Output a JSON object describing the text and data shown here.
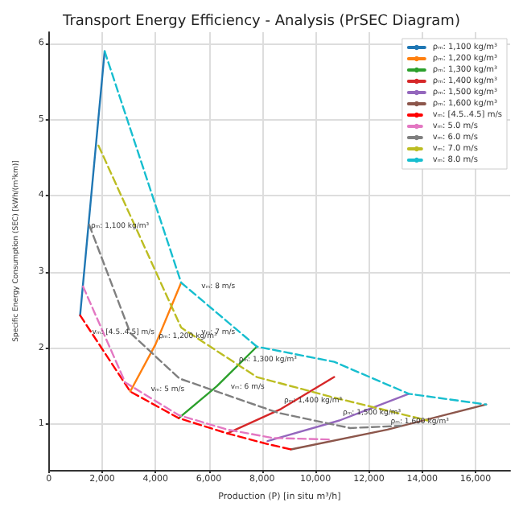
{
  "chart_data": {
    "type": "line",
    "title": "Transport Energy Efficiency - Analysis (PrSEC Diagram)",
    "xlabel": "Production (P) [in situ m³/h]",
    "ylabel": "Specific Energy Consumption (SEC) [kWh/(m³km)]",
    "xlim": [
      0,
      17300
    ],
    "ylim": [
      0.4,
      6.15
    ],
    "xticks": [
      0,
      {
        "value": 2000,
        "label": "2,000"
      },
      {
        "value": 4000,
        "label": "4,000"
      },
      {
        "value": 6000,
        "label": "6,000"
      },
      {
        "value": 8000,
        "label": "8,000"
      },
      {
        "value": 10000,
        "label": "10,000"
      },
      {
        "value": 12000,
        "label": "12,000"
      },
      {
        "value": 14000,
        "label": "14,000"
      },
      {
        "value": 16000,
        "label": "16,000"
      }
    ],
    "yticks": [
      1,
      2,
      3,
      4,
      5,
      6
    ],
    "grid": true,
    "legend": "top right",
    "marker": "none",
    "series": [
      {
        "name": "ρₘ: 1,100 kg/m³",
        "color": "#1f77b4",
        "line_style": "solid",
        "x": [
          1170,
          2090
        ],
        "values": [
          2.43,
          5.9
        ]
      },
      {
        "name": "ρₘ: 1,200 kg/m³",
        "color": "#ff7f0e",
        "line_style": "solid",
        "x": [
          3050,
          4000,
          4960
        ],
        "values": [
          1.43,
          2.05,
          2.86
        ]
      },
      {
        "name": "ρₘ: 1,300 kg/m³",
        "color": "#2ca02c",
        "line_style": "solid",
        "x": [
          4870,
          6300,
          7800
        ],
        "values": [
          1.08,
          1.5,
          2.02
        ]
      },
      {
        "name": "ρₘ: 1,400 kg/m³",
        "color": "#d62728",
        "line_style": "solid",
        "x": [
          6690,
          8700,
          10700
        ],
        "values": [
          0.88,
          1.2,
          1.62
        ]
      },
      {
        "name": "ρₘ: 1,500 kg/m³",
        "color": "#9467bd",
        "line_style": "solid",
        "x": [
          8200,
          10900,
          13500
        ],
        "values": [
          0.78,
          1.05,
          1.4
        ]
      },
      {
        "name": "ρₘ: 1,600 kg/m³",
        "color": "#8c564b",
        "line_style": "solid",
        "x": [
          9080,
          12700,
          16400
        ],
        "values": [
          0.67,
          0.93,
          1.26
        ]
      },
      {
        "name": "vₘ: [4.5..4.5] m/s",
        "color": "#ff0000",
        "line_style": "dashed",
        "x": [
          1170,
          3050,
          4870,
          6690,
          8200,
          9080
        ],
        "values": [
          2.43,
          1.43,
          1.08,
          0.88,
          0.74,
          0.67
        ]
      },
      {
        "name": "vₘ: 5.0 m/s",
        "color": "#e377c2",
        "line_style": "dashed",
        "x": [
          1280,
          2860,
          4870,
          6690,
          8400,
          10500
        ],
        "values": [
          2.81,
          1.55,
          1.12,
          0.93,
          0.82,
          0.8
        ]
      },
      {
        "name": "vₘ: 6.0 m/s",
        "color": "#7f7f7f",
        "line_style": "dashed",
        "x": [
          1510,
          3050,
          4900,
          8600,
          11300,
          13200
        ],
        "values": [
          3.62,
          2.2,
          1.6,
          1.15,
          0.95,
          0.98
        ]
      },
      {
        "name": "vₘ: 7.0 m/s",
        "color": "#bcbd22",
        "line_style": "dashed",
        "x": [
          1860,
          4960,
          7800,
          10700,
          14200
        ],
        "values": [
          4.66,
          2.27,
          1.62,
          1.35,
          1.05
        ]
      },
      {
        "name": "vₘ: 8.0 m/s",
        "color": "#17becf",
        "line_style": "dashed",
        "x": [
          2090,
          4960,
          7800,
          10700,
          13500,
          16400
        ],
        "values": [
          5.9,
          2.86,
          2.02,
          1.82,
          1.4,
          1.26
        ]
      }
    ],
    "annotations": [
      {
        "text": "ρₘ: 1,100 kg/m³",
        "x": 1454,
        "y": 3.5
      },
      {
        "text": "ρₘ: 1,200 kg/m³",
        "x": 4000,
        "y": 2.05
      },
      {
        "text": "ρₘ: 1,300 kg/m³",
        "x": 7000,
        "y": 1.74
      },
      {
        "text": "ρₘ: 1,400 kg/m³",
        "x": 8700,
        "y": 1.2
      },
      {
        "text": "ρₘ: 1,500 kg/m³",
        "x": 10900,
        "y": 1.05
      },
      {
        "text": "ρₘ: 1,600 kg/m³",
        "x": 12700,
        "y": 0.93
      },
      {
        "text": "vₘ: 8 m/s",
        "x": 5600,
        "y": 2.7
      },
      {
        "text": "vₘ: 7 m/s",
        "x": 5600,
        "y": 2.1
      },
      {
        "text": "vₘ: 6 m/s",
        "x": 6700,
        "y": 1.38
      },
      {
        "text": "vₘ: 5 m/s",
        "x": 3700,
        "y": 1.35
      },
      {
        "text": "vₘ: [4.5..4.5] m/s",
        "x": 1500,
        "y": 2.1
      }
    ]
  }
}
